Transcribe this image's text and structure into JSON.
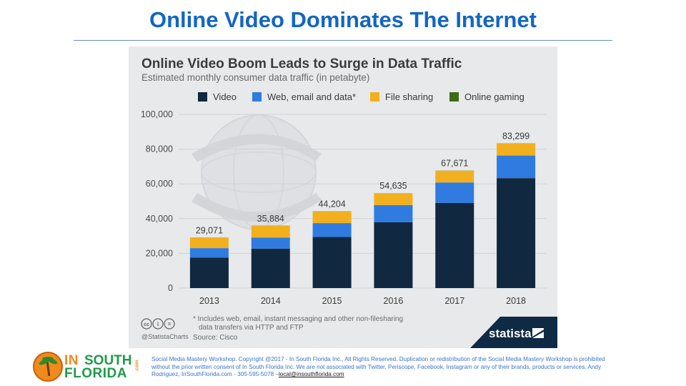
{
  "slide": {
    "title": "Online Video Dominates The Internet"
  },
  "chart_data": {
    "type": "bar",
    "stacked": true,
    "title": "Online Video Boom Leads to Surge in Data Traffic",
    "subtitle": "Estimated monthly consumer data traffic (in petabyte)",
    "categories": [
      "2013",
      "2014",
      "2015",
      "2016",
      "2017",
      "2018"
    ],
    "series": [
      {
        "name": "Video",
        "color": "#102840",
        "values": [
          17600,
          22700,
          29400,
          37900,
          49000,
          63300
        ]
      },
      {
        "name": "Web, email and data*",
        "color": "#2f7be0",
        "values": [
          5400,
          6400,
          8000,
          9900,
          11800,
          13000
        ]
      },
      {
        "name": "File sharing",
        "color": "#f2b01e",
        "values": [
          6000,
          6700,
          6700,
          6800,
          6800,
          6900
        ]
      },
      {
        "name": "Online gaming",
        "color": "#3d6b18",
        "values": [
          71,
          84,
          104,
          35,
          71,
          99
        ]
      }
    ],
    "totals": [
      "29,071",
      "35,884",
      "44,204",
      "54,635",
      "67,671",
      "83,299"
    ],
    "yticks": [
      {
        "value": 0,
        "label": "0"
      },
      {
        "value": 20000,
        "label": "20,000"
      },
      {
        "value": 40000,
        "label": "40,000"
      },
      {
        "value": 60000,
        "label": "60,000"
      },
      {
        "value": 80000,
        "label": "80,000"
      },
      {
        "value": 100000,
        "label": "100,000"
      }
    ],
    "ylim": [
      0,
      100000
    ],
    "grid": true,
    "legend_position": "top",
    "footnote_lines": [
      "* Includes web, email, instant messaging and other non-filesharing",
      "data transfers via HTTP and FTP"
    ],
    "source": "Source: Cisco",
    "credit": "@StatistaCharts",
    "brand": "statista",
    "cc_labels": [
      "cc",
      "i",
      "="
    ]
  },
  "footer": {
    "logo": {
      "in": "IN",
      "south": "SOUTH",
      "florida": "FLORIDA",
      "dotcom": ".com"
    },
    "disclaimer": "Social Media Mastery Workshop. Copyright @2017 - In South Florida Inc., All Rights Reserved. Duplication or redistribution of the Social Media Mastery Workshop is prohibited without the prior written consent of In South Florida Inc. We are not associated with Twitter, Periscope, Facebook, Instagram or any of their brands, products or services. Andy Rodriguez, InSouthFlorida.com - 305-595-5078 –",
    "email": "local@insouthflorida.com"
  }
}
